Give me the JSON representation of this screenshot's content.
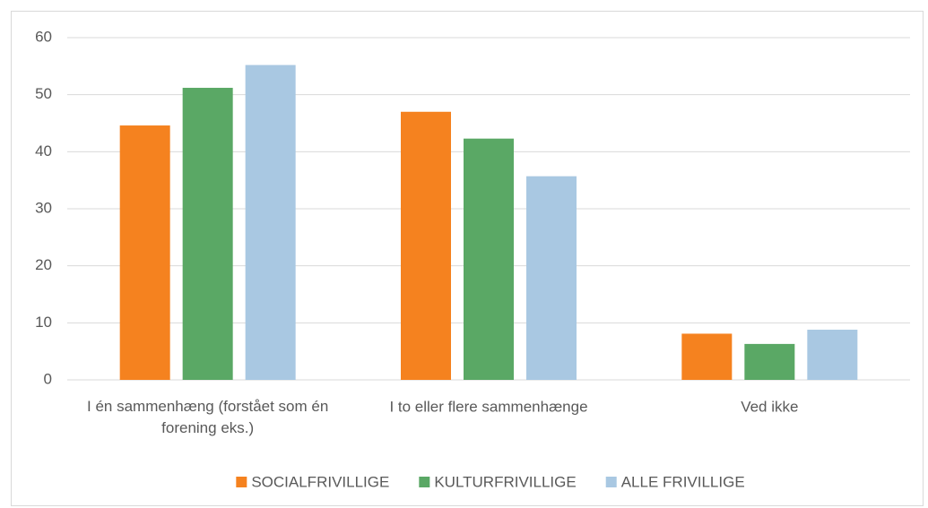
{
  "chart_data": {
    "type": "bar",
    "categories": [
      "I én sammenhæng (forstået som én forening eks.)",
      "I to eller flere sammenhænge",
      "Ved ikke"
    ],
    "series": [
      {
        "name": "SOCIALFRIVILLIGE",
        "color": "#f5821f",
        "values": [
          44.6,
          47.0,
          8.1
        ]
      },
      {
        "name": "KULTURFRIVILLIGE",
        "color": "#5aa865",
        "values": [
          51.2,
          42.3,
          6.3
        ]
      },
      {
        "name": "ALLE FRIVILLIGE",
        "color": "#a9c8e2",
        "values": [
          55.2,
          35.7,
          8.8
        ]
      }
    ],
    "ylim": [
      0,
      60
    ],
    "yticks": [
      0,
      10,
      20,
      30,
      40,
      50,
      60
    ],
    "grid": true,
    "legend": "bottom"
  }
}
